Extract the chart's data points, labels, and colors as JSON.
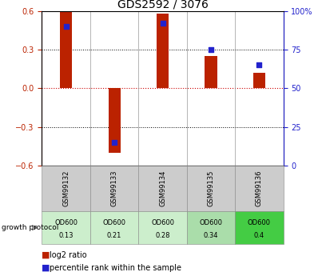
{
  "title": "GDS2592 / 3076",
  "samples": [
    "GSM99132",
    "GSM99133",
    "GSM99134",
    "GSM99135",
    "GSM99136"
  ],
  "log2_ratio": [
    0.6,
    -0.5,
    0.58,
    0.25,
    0.12
  ],
  "percentile_rank": [
    90,
    15,
    92,
    75,
    65
  ],
  "growth_protocol_line1": [
    "OD600",
    "OD600",
    "OD600",
    "OD600",
    "OD600"
  ],
  "growth_protocol_line2": [
    "0.13",
    "0.21",
    "0.28",
    "0.34",
    "0.4"
  ],
  "growth_colors": [
    "#cceecc",
    "#cceecc",
    "#cceecc",
    "#aaddaa",
    "#44cc44"
  ],
  "ylim": [
    -0.6,
    0.6
  ],
  "yticks_left": [
    -0.6,
    -0.3,
    0.0,
    0.3,
    0.6
  ],
  "yticks_right": [
    0,
    25,
    50,
    75,
    100
  ],
  "bar_color": "#bb2200",
  "dot_color": "#2222cc",
  "background_color": "#ffffff",
  "grid_color": "#000000",
  "zero_line_color": "#cc0000",
  "title_fontsize": 10,
  "axis_fontsize": 7,
  "legend_fontsize": 7,
  "sample_bg": "#cccccc"
}
